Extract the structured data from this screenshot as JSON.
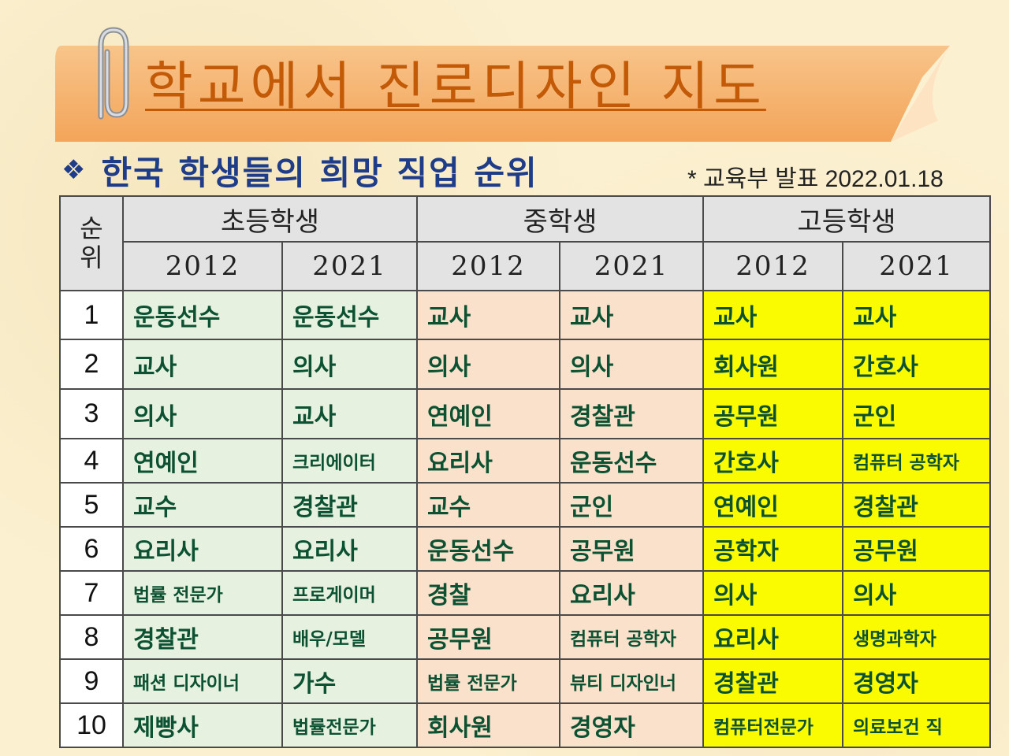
{
  "title": "학교에서 진로디자인 지도",
  "subtitle": "한국 학생들의 희망 직업 순위",
  "source_note": "* 교육부 발표 2022.01.18",
  "icons": {
    "bullet": "diamond-bullet-icon",
    "clip": "paperclip-icon"
  },
  "colors": {
    "title": "#c25a07",
    "subtitle": "#1f3c88",
    "cell_text": "#0b5132",
    "elementary_bg": "#e6f2df",
    "middle_bg": "#fae1cc",
    "high_bg": "#fafa00",
    "banner": "#f6b06a"
  },
  "table": {
    "rank_header": "순\n위",
    "groups": [
      "초등학생",
      "중학생",
      "고등학생"
    ],
    "years": [
      "2012",
      "2021",
      "2012",
      "2021",
      "2012",
      "2021"
    ],
    "rows": [
      {
        "rank": "1",
        "cells": [
          "운동선수",
          "운동선수",
          "교사",
          "교사",
          "교사",
          "교사"
        ]
      },
      {
        "rank": "2",
        "cells": [
          "교사",
          "의사",
          "의사",
          "의사",
          "회사원",
          "간호사"
        ]
      },
      {
        "rank": "3",
        "cells": [
          "의사",
          "교사",
          "연예인",
          "경찰관",
          "공무원",
          "군인"
        ]
      },
      {
        "rank": "4",
        "cells": [
          "연예인",
          "크리에이터",
          "요리사",
          "운동선수",
          "간호사",
          "컴퓨터 공학자"
        ]
      },
      {
        "rank": "5",
        "cells": [
          "교수",
          "경찰관",
          "교수",
          "군인",
          "연예인",
          "경찰관"
        ]
      },
      {
        "rank": "6",
        "cells": [
          "요리사",
          "요리사",
          "운동선수",
          "공무원",
          "공학자",
          "공무원"
        ]
      },
      {
        "rank": "7",
        "cells": [
          "법률 전문가",
          "프로게이머",
          "경찰",
          "요리사",
          "의사",
          "의사"
        ]
      },
      {
        "rank": "8",
        "cells": [
          "경찰관",
          "배우/모델",
          "공무원",
          "컴퓨터 공학자",
          "요리사",
          "생명과학자"
        ]
      },
      {
        "rank": "9",
        "cells": [
          "패션 디자이너",
          "가수",
          "법률 전문가",
          "뷰티 디자인너",
          "경찰관",
          "경영자"
        ]
      },
      {
        "rank": "10",
        "cells": [
          "제빵사",
          "법률전문가",
          "회사원",
          "경영자",
          "컴퓨터전문가",
          "의료보건 직"
        ]
      }
    ]
  }
}
